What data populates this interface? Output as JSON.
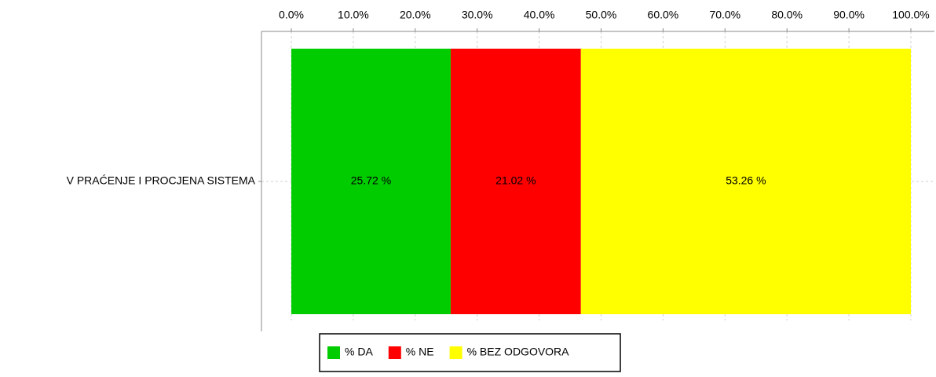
{
  "chart_data": {
    "type": "stacked-bar-horizontal",
    "categories": [
      "V PRAĆENJE I PROCJENA SISTEMA"
    ],
    "series": [
      {
        "name": "% DA",
        "color": "#00cc00",
        "values": [
          25.72
        ],
        "value_labels": [
          "25.72 %"
        ]
      },
      {
        "name": "% NE",
        "color": "#ff0000",
        "values": [
          21.02
        ],
        "value_labels": [
          "21.02 %"
        ]
      },
      {
        "name": "% BEZ ODGOVORA",
        "color": "#ffff00",
        "values": [
          53.26
        ],
        "value_labels": [
          "53.26 %"
        ]
      }
    ],
    "xlim": [
      0,
      100
    ],
    "xticks": [
      {
        "value": 0,
        "label": "0.0%"
      },
      {
        "value": 10,
        "label": "10.0%"
      },
      {
        "value": 20,
        "label": "20.0%"
      },
      {
        "value": 30,
        "label": "30.0%"
      },
      {
        "value": 40,
        "label": "40.0%"
      },
      {
        "value": 50,
        "label": "50.0%"
      },
      {
        "value": 60,
        "label": "60.0%"
      },
      {
        "value": 70,
        "label": "70.0%"
      },
      {
        "value": 80,
        "label": "80.0%"
      },
      {
        "value": 90,
        "label": "90.0%"
      },
      {
        "value": 100,
        "label": "100.0%"
      }
    ],
    "grid": true,
    "legend": "bottom"
  }
}
